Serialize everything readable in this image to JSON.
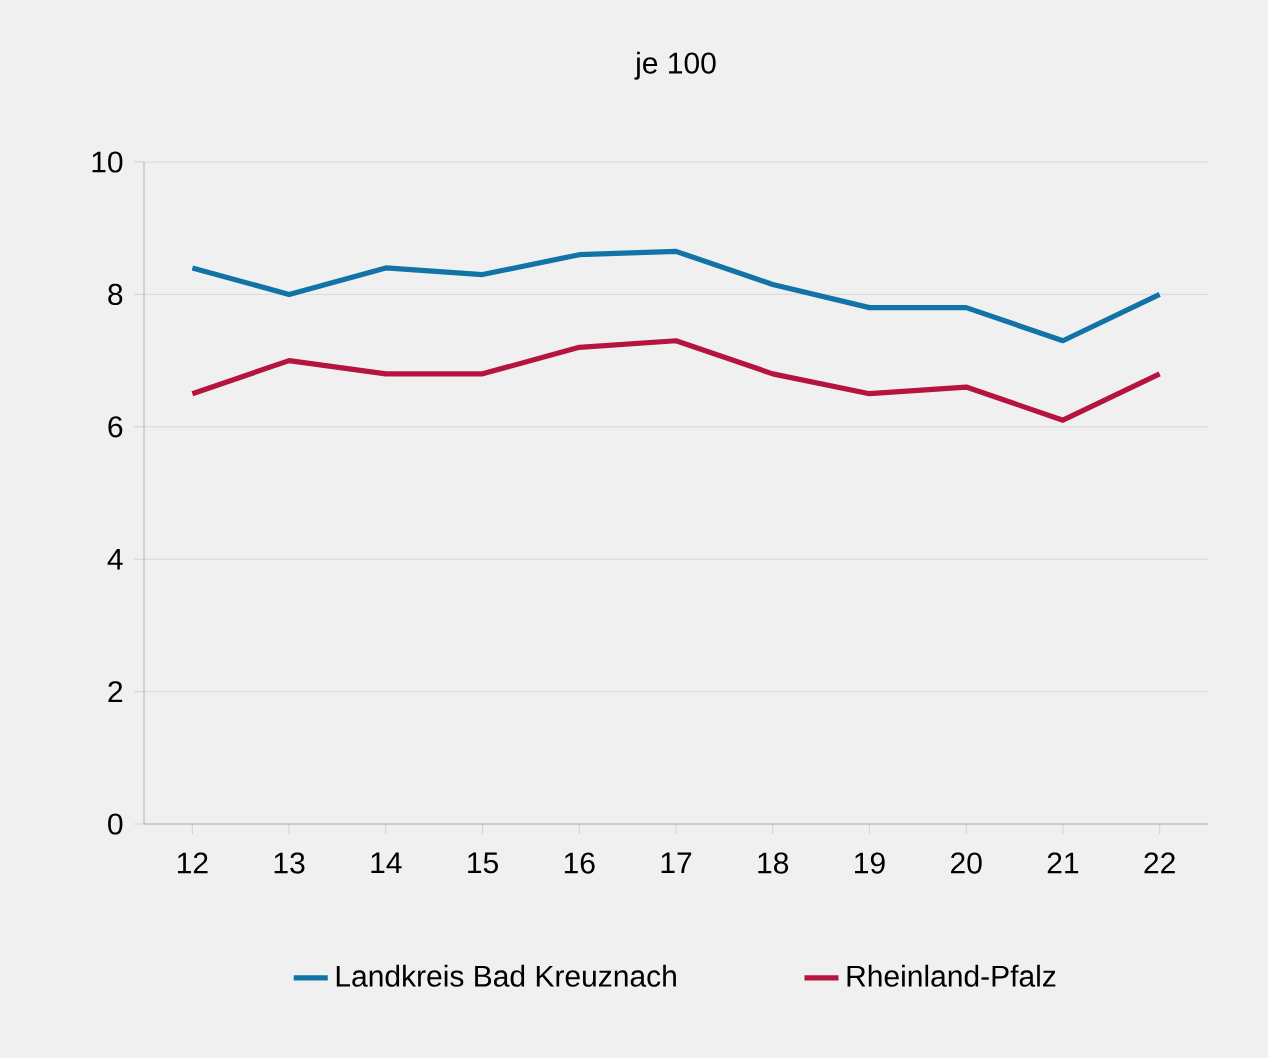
{
  "chart_data": {
    "type": "line",
    "title": "je 100",
    "categories": [
      "12",
      "13",
      "14",
      "15",
      "16",
      "17",
      "18",
      "19",
      "20",
      "21",
      "22"
    ],
    "series": [
      {
        "name": "Landkreis Bad Kreuznach",
        "color": "#1273a6",
        "values": [
          8.4,
          8.0,
          8.4,
          8.3,
          8.6,
          8.65,
          8.15,
          7.8,
          7.8,
          7.3,
          8.0
        ]
      },
      {
        "name": "Rheinland-Pfalz",
        "color": "#b4143f",
        "values": [
          6.5,
          7.0,
          6.8,
          6.8,
          7.2,
          7.3,
          6.8,
          6.5,
          6.6,
          6.1,
          6.8
        ]
      }
    ],
    "ylim": [
      0,
      10
    ],
    "yticks": [
      0,
      2,
      4,
      6,
      8,
      10
    ],
    "grid": "y",
    "legend": "bottom",
    "marker": "none",
    "line_style": "solid"
  }
}
